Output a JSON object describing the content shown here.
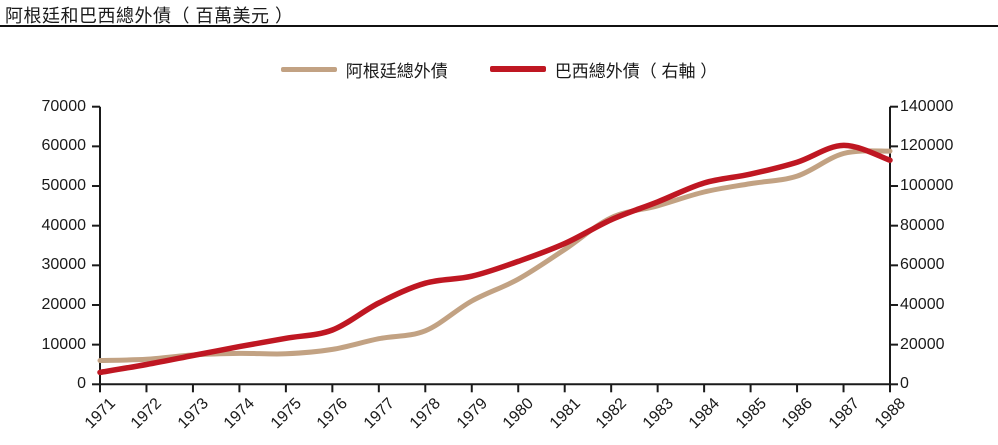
{
  "title": "阿根廷和巴西總外債（ 百萬美元 ）",
  "legend": {
    "items": [
      {
        "label": "阿根廷總外債",
        "color": "#c2a283"
      },
      {
        "label": "巴西總外債（ 右軸 ）",
        "color": "#bf1722"
      }
    ]
  },
  "colors": {
    "axis": "#1a1a1a",
    "text": "#1a1a1a",
    "background": "#ffffff",
    "argentina_line": "#c2a283",
    "brazil_line": "#bf1722"
  },
  "chart_data": {
    "type": "line",
    "title": "阿根廷和巴西總外債（ 百萬美元 ）",
    "x": [
      1971,
      1972,
      1973,
      1974,
      1975,
      1976,
      1977,
      1978,
      1979,
      1980,
      1981,
      1982,
      1983,
      1984,
      1985,
      1986,
      1987,
      1988
    ],
    "series": [
      {
        "name": "阿根廷總外債",
        "axis": "left",
        "color": "#c2a283",
        "values": [
          6000,
          6300,
          7400,
          7800,
          7700,
          8800,
          11500,
          13500,
          21000,
          26500,
          34000,
          42000,
          45000,
          48500,
          50600,
          52500,
          58200,
          58800
        ]
      },
      {
        "name": "巴西總外債（ 右軸 ）",
        "axis": "right",
        "color": "#bf1722",
        "values": [
          6000,
          10000,
          14500,
          19000,
          23200,
          27400,
          41000,
          51000,
          54500,
          62000,
          71000,
          83000,
          92000,
          101500,
          106000,
          112000,
          120500,
          113000
        ]
      }
    ],
    "left_axis": {
      "min": 0,
      "max": 70000,
      "tick_step": 10000,
      "ticks": [
        0,
        10000,
        20000,
        30000,
        40000,
        50000,
        60000,
        70000
      ]
    },
    "right_axis": {
      "min": 0,
      "max": 140000,
      "tick_step": 20000,
      "ticks": [
        0,
        20000,
        40000,
        60000,
        80000,
        100000,
        120000,
        140000
      ]
    },
    "grid": false,
    "legend_position": "top"
  }
}
